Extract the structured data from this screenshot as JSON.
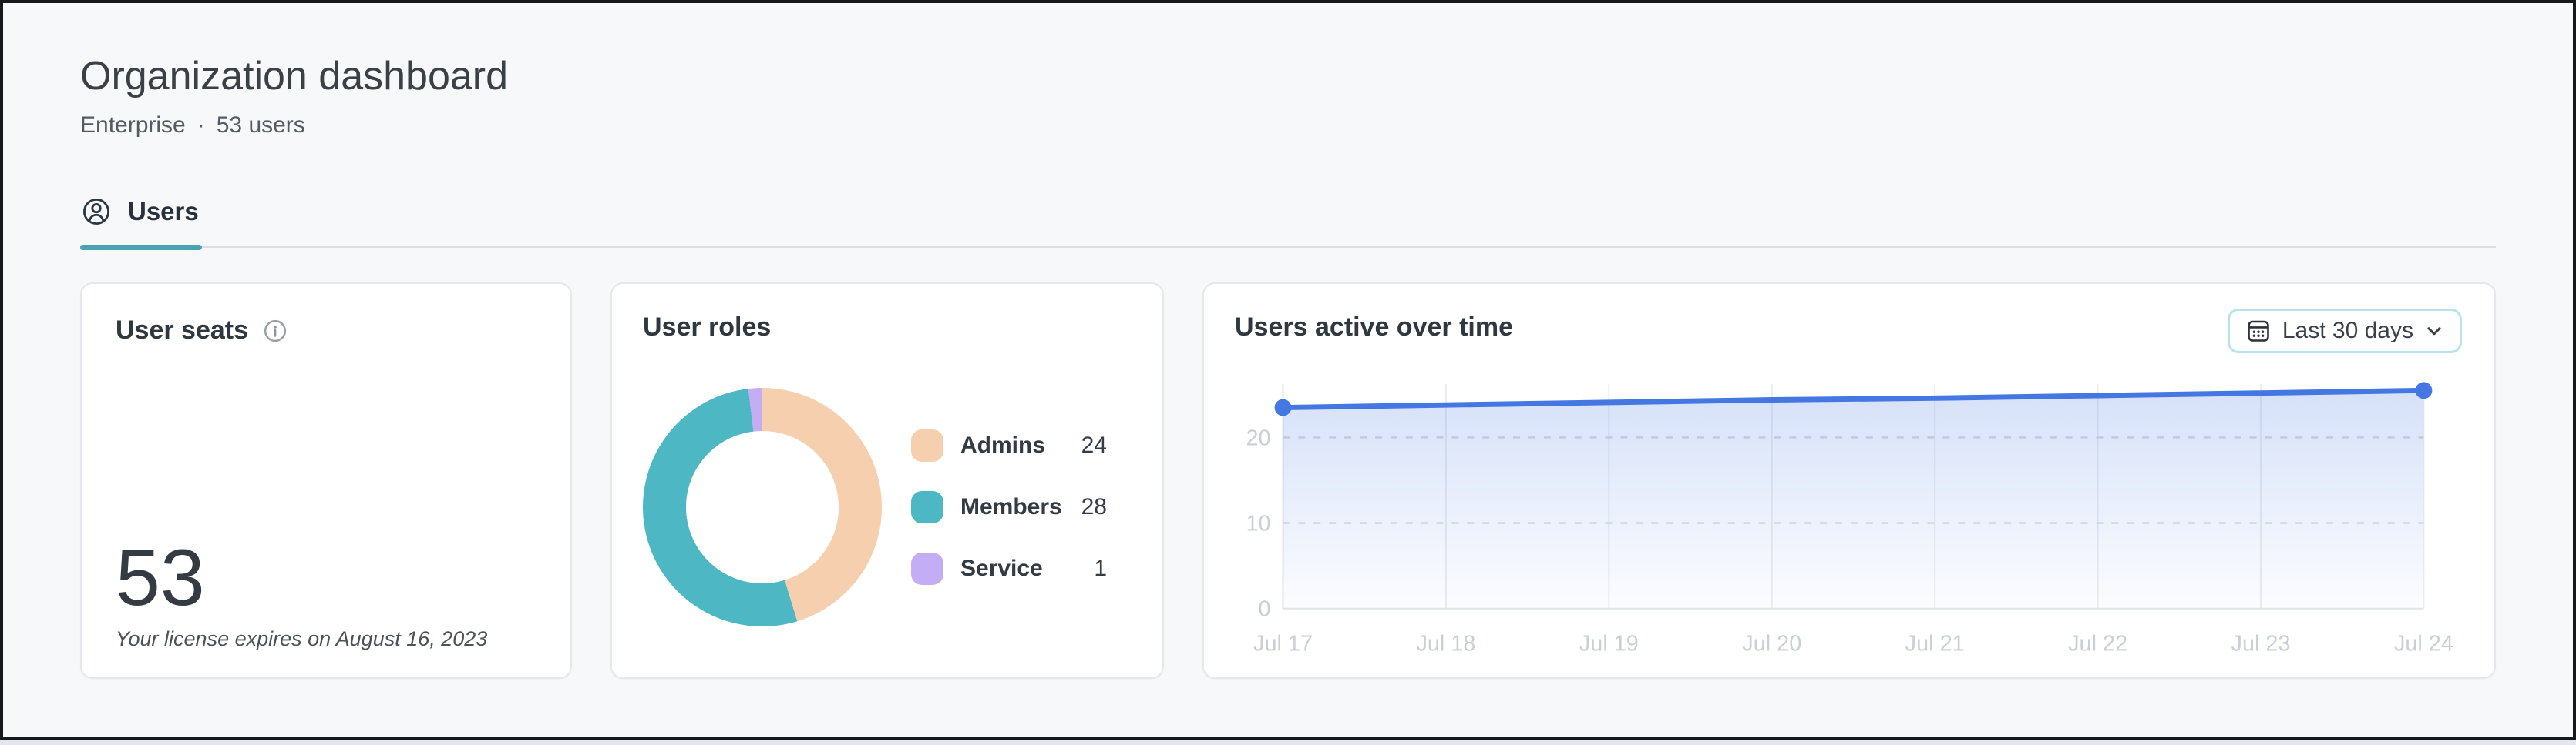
{
  "window": {
    "frame_color": "#17191c",
    "background": "#f7f8f9",
    "bottom_strip_color": "#e1e6ef"
  },
  "header": {
    "title": "Organization dashboard",
    "plan": "Enterprise",
    "separator": "·",
    "user_count": "53 users"
  },
  "tabs": [
    {
      "label": "Users",
      "icon": "user-icon",
      "active": true
    }
  ],
  "colors": {
    "tab_underline": "#4ba3b2",
    "accent_blue": "#4477e2",
    "range_border": "#b7e4eb"
  },
  "cards": {
    "user_seats": {
      "title": "User seats",
      "info_icon": "info-icon",
      "value": "53",
      "note": "Your license expires on August 16, 2023"
    },
    "user_roles": {
      "title": "User roles"
    },
    "active_users": {
      "title": "Users active over time",
      "range_label": "Last 30 days",
      "range_icon": "calendar-icon",
      "range_chevron": "chevron-down-icon"
    }
  },
  "chart_data": [
    {
      "type": "pie",
      "donut": true,
      "title": "User roles",
      "labels": [
        "Admins",
        "Members",
        "Service"
      ],
      "values": [
        24,
        28,
        1
      ],
      "colors": [
        "#f6cfae",
        "#4db7c3",
        "#c3aef5"
      ],
      "total": 53,
      "start_angle_deg": 0,
      "direction": "clockwise",
      "legend_position": "right"
    },
    {
      "type": "area",
      "title": "Users active over time",
      "x": [
        "Jul 17",
        "Jul 18",
        "Jul 19",
        "Jul 20",
        "Jul 21",
        "Jul 22",
        "Jul 23",
        "Jul 24"
      ],
      "values": [
        23.5,
        23.8,
        24.1,
        24.4,
        24.6,
        24.9,
        25.2,
        25.5
      ],
      "ylim": [
        0,
        26.25
      ],
      "yticks": [
        0,
        10,
        20
      ],
      "xlabel": "",
      "ylabel": "",
      "line_color": "#4477e2",
      "fill": "blue-gradient-fade-to-bottom",
      "markers": "first-and-last-point",
      "grid": {
        "vertical": "solid",
        "horizontal": "dotted"
      },
      "legend_position": "none",
      "range_label": "Last 30 days"
    }
  ]
}
